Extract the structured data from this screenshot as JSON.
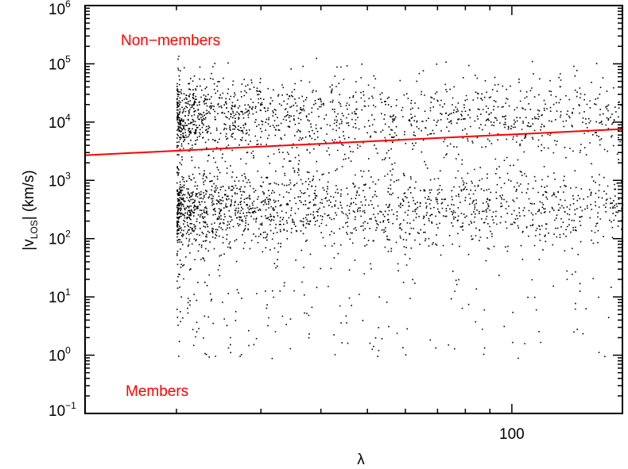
{
  "chart_data": {
    "type": "scatter",
    "title": "",
    "xlabel": "λ",
    "ylabel": {
      "prefix": "|v",
      "subscript": "LOS",
      "suffix": "| (km/s)"
    },
    "xscale": "log",
    "yscale": "log",
    "xlim": [
      12.9,
      170
    ],
    "ylim": [
      0.1,
      1000000
    ],
    "x_ticks": [
      {
        "value": 100,
        "label": "100"
      }
    ],
    "y_ticks": [
      {
        "value": 1000000,
        "base": "10",
        "exp": "6"
      },
      {
        "value": 100000,
        "base": "10",
        "exp": "5"
      },
      {
        "value": 10000,
        "base": "10",
        "exp": "4"
      },
      {
        "value": 1000,
        "base": "10",
        "exp": "3"
      },
      {
        "value": 100,
        "base": "10",
        "exp": "2"
      },
      {
        "value": 10,
        "base": "10",
        "exp": "1"
      },
      {
        "value": 1,
        "base": "10",
        "exp": "0"
      },
      {
        "value": 0.1,
        "base": "10",
        "exp": "−1"
      }
    ],
    "grid": false,
    "point_color": "#000000",
    "point_cloud": {
      "approx_count": 12000,
      "x_range": [
        20,
        170
      ],
      "members": {
        "y_center_log10": 2.55,
        "y_spread_log10": 0.35,
        "y_tail_min": 0.3
      },
      "non_members": {
        "y_center_log10": 4.1,
        "y_spread_log10": 0.35,
        "y_max": 150000
      }
    },
    "series": [
      {
        "type": "line",
        "color": "#ff0000",
        "x": [
          12.9,
          170
        ],
        "y": [
          2700,
          7600
        ]
      }
    ],
    "annotations": [
      {
        "text": "Non−members",
        "color": "#ff0000"
      },
      {
        "text": "Members",
        "color": "#ff0000"
      }
    ]
  }
}
